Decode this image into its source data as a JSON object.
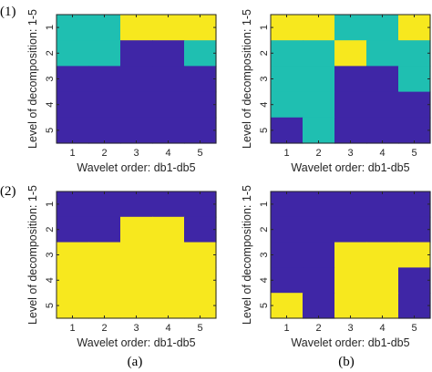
{
  "row_labels": [
    "(1)",
    "(2)"
  ],
  "column_labels": [
    "(a)",
    "(b)"
  ],
  "colors": {
    "1": "#3f26a6",
    "2": "#1fbfb1",
    "3": "#f7e81e",
    "axis": "#262626"
  },
  "chart_data": [
    {
      "type": "heatmap",
      "panel": "(1)(a)",
      "xlabel": "Wavelet order: db1-db5",
      "ylabel": "Level of decomposition: 1-5",
      "x_ticks": [
        "1",
        "2",
        "3",
        "4",
        "5"
      ],
      "y_ticks": [
        "1",
        "2",
        "3",
        "4",
        "5"
      ],
      "grid": [
        [
          2,
          2,
          3,
          3,
          3
        ],
        [
          2,
          2,
          1,
          1,
          2
        ],
        [
          1,
          1,
          1,
          1,
          1
        ],
        [
          1,
          1,
          1,
          1,
          1
        ],
        [
          1,
          1,
          1,
          1,
          1
        ]
      ]
    },
    {
      "type": "heatmap",
      "panel": "(1)(b)",
      "xlabel": "Wavelet order: db1-db5",
      "ylabel": "Level of decomposition: 1-5",
      "x_ticks": [
        "1",
        "2",
        "3",
        "4",
        "5"
      ],
      "y_ticks": [
        "1",
        "2",
        "3",
        "4",
        "5"
      ],
      "grid": [
        [
          3,
          3,
          2,
          2,
          3
        ],
        [
          2,
          2,
          3,
          2,
          2
        ],
        [
          2,
          2,
          1,
          1,
          2
        ],
        [
          2,
          2,
          1,
          1,
          1
        ],
        [
          1,
          2,
          1,
          1,
          1
        ]
      ]
    },
    {
      "type": "heatmap",
      "panel": "(2)(a)",
      "xlabel": "Wavelet order: db1-db5",
      "ylabel": "Level of decomposition: 1-5",
      "x_ticks": [
        "1",
        "2",
        "3",
        "4",
        "5"
      ],
      "y_ticks": [
        "1",
        "2",
        "3",
        "4",
        "5"
      ],
      "grid": [
        [
          1,
          1,
          1,
          1,
          1
        ],
        [
          1,
          1,
          3,
          3,
          1
        ],
        [
          3,
          3,
          3,
          3,
          3
        ],
        [
          3,
          3,
          3,
          3,
          3
        ],
        [
          3,
          3,
          3,
          3,
          3
        ]
      ]
    },
    {
      "type": "heatmap",
      "panel": "(2)(b)",
      "xlabel": "Wavelet order: db1-db5",
      "ylabel": "Level of decomposition: 1-5",
      "x_ticks": [
        "1",
        "2",
        "3",
        "4",
        "5"
      ],
      "y_ticks": [
        "1",
        "2",
        "3",
        "4",
        "5"
      ],
      "grid": [
        [
          1,
          1,
          1,
          1,
          1
        ],
        [
          1,
          1,
          1,
          1,
          1
        ],
        [
          1,
          1,
          3,
          3,
          3
        ],
        [
          1,
          1,
          3,
          3,
          1
        ],
        [
          3,
          1,
          3,
          3,
          1
        ]
      ]
    }
  ]
}
